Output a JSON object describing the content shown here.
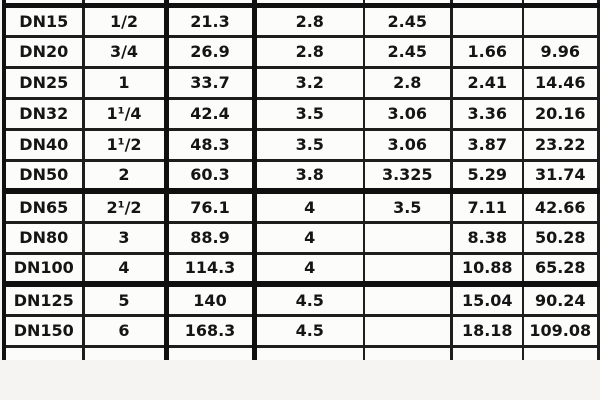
{
  "table": {
    "description_name": "steel-pipe-dimension-table",
    "top_partial_row": true,
    "bottom_partial_row": true,
    "rows": [
      {
        "cells": [
          "DN15",
          "1/2",
          "21.3",
          "2.8",
          "2.45",
          "",
          ""
        ],
        "thick_border_below": false
      },
      {
        "cells": [
          "DN20",
          "3/4",
          "26.9",
          "2.8",
          "2.45",
          "1.66",
          "9.96"
        ],
        "thick_border_below": false
      },
      {
        "cells": [
          "DN25",
          "1",
          "33.7",
          "3.2",
          "2.8",
          "2.41",
          "14.46"
        ],
        "thick_border_below": false
      },
      {
        "cells": [
          "DN32",
          "1¹/4",
          "42.4",
          "3.5",
          "3.06",
          "3.36",
          "20.16"
        ],
        "thick_border_below": false
      },
      {
        "cells": [
          "DN40",
          "1¹/2",
          "48.3",
          "3.5",
          "3.06",
          "3.87",
          "23.22"
        ],
        "thick_border_below": false
      },
      {
        "cells": [
          "DN50",
          "2",
          "60.3",
          "3.8",
          "3.325",
          "5.29",
          "31.74"
        ],
        "thick_border_below": true
      },
      {
        "cells": [
          "DN65",
          "2¹/2",
          "76.1",
          "4",
          "3.5",
          "7.11",
          "42.66"
        ],
        "thick_border_below": false
      },
      {
        "cells": [
          "DN80",
          "3",
          "88.9",
          "4",
          "",
          "8.38",
          "50.28"
        ],
        "thick_border_below": false
      },
      {
        "cells": [
          "DN100",
          "4",
          "114.3",
          "4",
          "",
          "10.88",
          "65.28"
        ],
        "thick_border_below": true
      },
      {
        "cells": [
          "DN125",
          "5",
          "140",
          "4.5",
          "",
          "15.04",
          "90.24"
        ],
        "thick_border_below": false
      },
      {
        "cells": [
          "DN150",
          "6",
          "168.3",
          "4.5",
          "",
          "18.18",
          "109.08"
        ],
        "thick_border_below": false
      }
    ],
    "column_semantics": [
      "dn-size",
      "inch-size",
      "outer-diameter",
      "wall-thickness",
      "wall-thickness-alt",
      "weight-per-meter",
      "weight-per-length"
    ]
  },
  "colors": {
    "background": "#f5f4f2",
    "cell_background": "#fcfcfb",
    "grid_line": "#1e1e1e",
    "grid_line_thick": "#101010",
    "text": "#151515"
  }
}
